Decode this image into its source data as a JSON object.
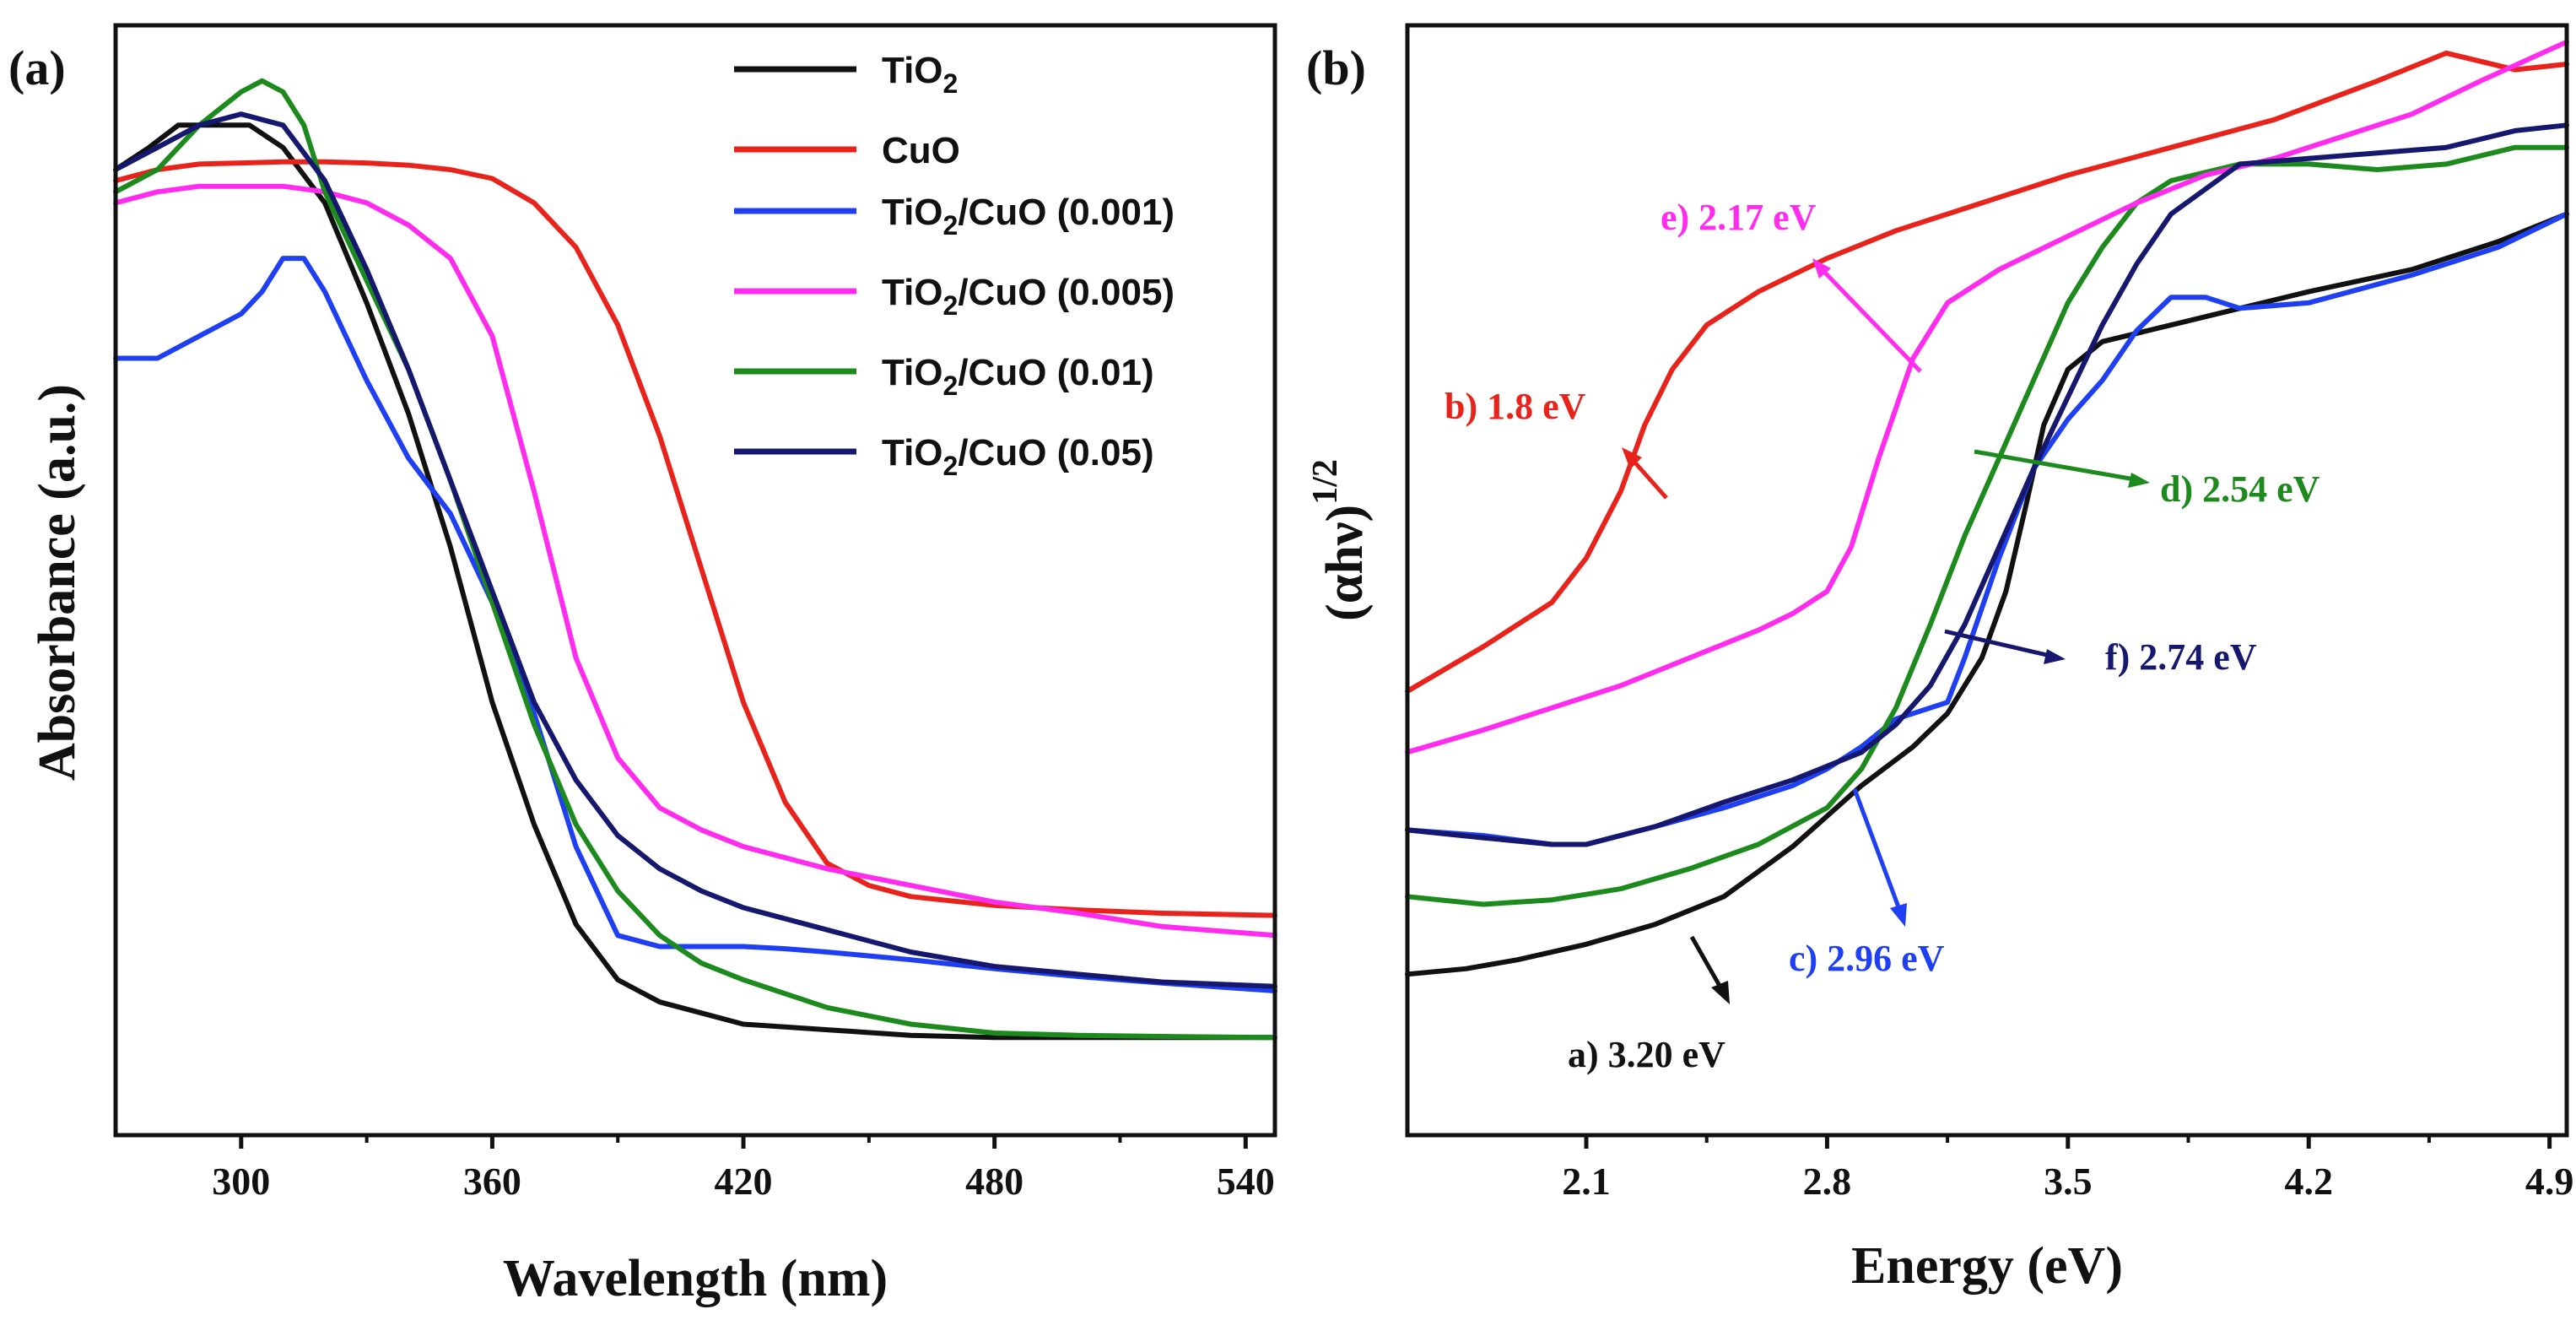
{
  "colors": {
    "black": "#111111",
    "red": "#e8231c",
    "blue": "#1f3ff2",
    "magenta": "#ff2cf0",
    "green": "#1d8a1d",
    "navy": "#15186e"
  },
  "chart_data": [
    {
      "panel": "a",
      "panel_label": "(a)",
      "type": "line",
      "xlabel": "Wavelength (nm)",
      "ylabel": "Absorbance (a.u.)",
      "xlim": [
        270,
        547
      ],
      "ylim": [
        0,
        1
      ],
      "xticks": [
        300,
        360,
        420,
        480,
        540
      ],
      "yticks_shown": false,
      "legend_position": "top-center",
      "legend": [
        {
          "base": "TiO",
          "sub": "2",
          "rest": "",
          "color_key": "black"
        },
        {
          "base": "CuO",
          "sub": "",
          "rest": "",
          "color_key": "red"
        },
        {
          "base": "TiO",
          "sub": "2",
          "rest": "/CuO (0.001)",
          "color_key": "blue"
        },
        {
          "base": "TiO",
          "sub": "2",
          "rest": "/CuO (0.005)",
          "color_key": "magenta"
        },
        {
          "base": "TiO",
          "sub": "2",
          "rest": "/CuO (0.01)",
          "color_key": "green"
        },
        {
          "base": "TiO",
          "sub": "2",
          "rest": "/CuO (0.05)",
          "color_key": "navy"
        }
      ],
      "series": [
        {
          "name": "TiO2",
          "color_key": "black",
          "x": [
            270,
            278,
            285,
            295,
            302,
            310,
            320,
            330,
            340,
            350,
            360,
            370,
            380,
            390,
            400,
            410,
            420,
            440,
            460,
            480,
            500,
            520,
            547
          ],
          "y": [
            0.87,
            0.89,
            0.91,
            0.91,
            0.91,
            0.89,
            0.84,
            0.75,
            0.65,
            0.53,
            0.39,
            0.28,
            0.19,
            0.14,
            0.12,
            0.11,
            0.1,
            0.095,
            0.09,
            0.088,
            0.088,
            0.088,
            0.088
          ]
        },
        {
          "name": "CuO",
          "color_key": "red",
          "x": [
            270,
            280,
            290,
            300,
            310,
            320,
            330,
            340,
            350,
            360,
            370,
            380,
            390,
            400,
            410,
            420,
            430,
            440,
            450,
            460,
            480,
            500,
            520,
            547
          ],
          "y": [
            0.86,
            0.87,
            0.875,
            0.876,
            0.877,
            0.877,
            0.876,
            0.874,
            0.87,
            0.862,
            0.84,
            0.8,
            0.73,
            0.63,
            0.51,
            0.39,
            0.3,
            0.245,
            0.225,
            0.215,
            0.207,
            0.203,
            0.2,
            0.198
          ]
        },
        {
          "name": "TiO2/CuO (0.001)",
          "color_key": "blue",
          "x": [
            270,
            280,
            290,
            300,
            305,
            310,
            315,
            320,
            330,
            340,
            350,
            360,
            370,
            380,
            390,
            400,
            410,
            420,
            430,
            440,
            460,
            480,
            500,
            520,
            547
          ],
          "y": [
            0.7,
            0.7,
            0.72,
            0.74,
            0.76,
            0.79,
            0.79,
            0.76,
            0.68,
            0.61,
            0.56,
            0.48,
            0.38,
            0.26,
            0.18,
            0.17,
            0.17,
            0.17,
            0.168,
            0.165,
            0.158,
            0.15,
            0.143,
            0.137,
            0.13
          ]
        },
        {
          "name": "TiO2/CuO (0.005)",
          "color_key": "magenta",
          "x": [
            270,
            280,
            290,
            300,
            310,
            320,
            330,
            340,
            350,
            360,
            370,
            380,
            390,
            400,
            410,
            420,
            440,
            460,
            480,
            500,
            520,
            547
          ],
          "y": [
            0.84,
            0.85,
            0.855,
            0.855,
            0.855,
            0.85,
            0.84,
            0.82,
            0.79,
            0.72,
            0.58,
            0.43,
            0.34,
            0.295,
            0.275,
            0.26,
            0.24,
            0.225,
            0.21,
            0.2,
            0.188,
            0.18
          ]
        },
        {
          "name": "TiO2/CuO (0.01)",
          "color_key": "green",
          "x": [
            270,
            280,
            290,
            300,
            305,
            310,
            315,
            320,
            330,
            340,
            350,
            360,
            370,
            380,
            390,
            400,
            410,
            420,
            440,
            460,
            480,
            500,
            520,
            547
          ],
          "y": [
            0.85,
            0.87,
            0.91,
            0.94,
            0.95,
            0.94,
            0.91,
            0.85,
            0.77,
            0.69,
            0.59,
            0.48,
            0.37,
            0.28,
            0.22,
            0.18,
            0.155,
            0.14,
            0.115,
            0.1,
            0.092,
            0.09,
            0.089,
            0.088
          ]
        },
        {
          "name": "TiO2/CuO (0.05)",
          "color_key": "navy",
          "x": [
            270,
            280,
            290,
            300,
            310,
            320,
            330,
            340,
            350,
            360,
            370,
            380,
            390,
            400,
            410,
            420,
            440,
            460,
            480,
            500,
            520,
            547
          ],
          "y": [
            0.87,
            0.89,
            0.91,
            0.92,
            0.91,
            0.86,
            0.78,
            0.69,
            0.59,
            0.49,
            0.39,
            0.32,
            0.27,
            0.24,
            0.22,
            0.205,
            0.185,
            0.165,
            0.152,
            0.145,
            0.138,
            0.134
          ]
        }
      ]
    },
    {
      "panel": "b",
      "panel_label": "(b)",
      "type": "line",
      "xlabel": "Energy (eV)",
      "ylabel_base": "(αhν)",
      "ylabel_sup": "1/2",
      "xlim": [
        1.58,
        4.95
      ],
      "ylim": [
        0,
        1
      ],
      "xticks": [
        2.1,
        2.8,
        3.5,
        4.2,
        4.9
      ],
      "yticks_shown": false,
      "series": [
        {
          "name": "a",
          "color_key": "black",
          "x": [
            1.58,
            1.75,
            1.9,
            2.1,
            2.3,
            2.5,
            2.7,
            2.9,
            3.05,
            3.15,
            3.25,
            3.32,
            3.38,
            3.43,
            3.5,
            3.6,
            3.8,
            4.0,
            4.2,
            4.5,
            4.75,
            4.95
          ],
          "y": [
            0.145,
            0.15,
            0.158,
            0.172,
            0.19,
            0.215,
            0.26,
            0.315,
            0.35,
            0.38,
            0.43,
            0.49,
            0.57,
            0.64,
            0.69,
            0.715,
            0.73,
            0.745,
            0.76,
            0.78,
            0.805,
            0.83
          ]
        },
        {
          "name": "b",
          "color_key": "red",
          "x": [
            1.58,
            1.8,
            2.0,
            2.1,
            2.2,
            2.27,
            2.35,
            2.45,
            2.6,
            2.8,
            3.0,
            3.2,
            3.5,
            3.8,
            4.1,
            4.4,
            4.6,
            4.8,
            4.95
          ],
          "y": [
            0.4,
            0.44,
            0.48,
            0.52,
            0.58,
            0.64,
            0.69,
            0.73,
            0.76,
            0.79,
            0.815,
            0.835,
            0.865,
            0.89,
            0.915,
            0.95,
            0.975,
            0.96,
            0.965
          ]
        },
        {
          "name": "c",
          "color_key": "blue",
          "x": [
            1.58,
            1.8,
            2.0,
            2.1,
            2.3,
            2.5,
            2.7,
            2.8,
            2.9,
            3.0,
            3.05,
            3.1,
            3.15,
            3.2,
            3.3,
            3.4,
            3.5,
            3.6,
            3.7,
            3.8,
            3.9,
            4.0,
            4.2,
            4.5,
            4.75,
            4.95
          ],
          "y": [
            0.275,
            0.27,
            0.262,
            0.262,
            0.278,
            0.295,
            0.315,
            0.33,
            0.35,
            0.375,
            0.38,
            0.385,
            0.39,
            0.43,
            0.52,
            0.6,
            0.645,
            0.68,
            0.725,
            0.755,
            0.755,
            0.745,
            0.75,
            0.775,
            0.8,
            0.83
          ]
        },
        {
          "name": "d",
          "color_key": "green",
          "x": [
            1.58,
            1.8,
            2.0,
            2.2,
            2.4,
            2.6,
            2.8,
            2.9,
            3.0,
            3.1,
            3.2,
            3.3,
            3.4,
            3.5,
            3.6,
            3.7,
            3.8,
            4.0,
            4.2,
            4.4,
            4.6,
            4.8,
            4.95
          ],
          "y": [
            0.215,
            0.208,
            0.212,
            0.222,
            0.24,
            0.262,
            0.295,
            0.33,
            0.385,
            0.46,
            0.54,
            0.61,
            0.68,
            0.75,
            0.8,
            0.84,
            0.86,
            0.875,
            0.875,
            0.87,
            0.875,
            0.89,
            0.89
          ]
        },
        {
          "name": "e",
          "color_key": "magenta",
          "x": [
            1.58,
            1.8,
            2.0,
            2.2,
            2.4,
            2.6,
            2.7,
            2.8,
            2.87,
            2.95,
            3.05,
            3.15,
            3.3,
            3.5,
            3.7,
            3.9,
            4.1,
            4.3,
            4.5,
            4.7,
            4.95
          ],
          "y": [
            0.345,
            0.365,
            0.385,
            0.405,
            0.43,
            0.455,
            0.47,
            0.49,
            0.53,
            0.61,
            0.7,
            0.75,
            0.78,
            0.81,
            0.84,
            0.865,
            0.88,
            0.9,
            0.92,
            0.95,
            0.985
          ]
        },
        {
          "name": "f",
          "color_key": "navy",
          "x": [
            1.58,
            1.8,
            2.0,
            2.1,
            2.3,
            2.5,
            2.7,
            2.9,
            3.0,
            3.1,
            3.2,
            3.3,
            3.4,
            3.5,
            3.6,
            3.7,
            3.8,
            4.0,
            4.2,
            4.4,
            4.6,
            4.8,
            4.95
          ],
          "y": [
            0.275,
            0.268,
            0.262,
            0.262,
            0.278,
            0.3,
            0.32,
            0.345,
            0.37,
            0.405,
            0.46,
            0.53,
            0.6,
            0.665,
            0.73,
            0.785,
            0.83,
            0.875,
            0.88,
            0.885,
            0.89,
            0.905,
            0.91
          ]
        }
      ],
      "annotations": [
        {
          "name": "annotation-a",
          "text": "a) 3.20 eV",
          "color_key": "black",
          "edge_eV": 3.2,
          "direction": "down-right"
        },
        {
          "name": "annotation-b",
          "text": "b) 1.8 eV",
          "color_key": "red",
          "edge_eV": 1.8,
          "direction": "up-left"
        },
        {
          "name": "annotation-c",
          "text": "c) 2.96 eV",
          "color_key": "blue",
          "edge_eV": 2.96,
          "direction": "down-right"
        },
        {
          "name": "annotation-d",
          "text": "d) 2.54 eV",
          "color_key": "green",
          "edge_eV": 2.54,
          "direction": "right"
        },
        {
          "name": "annotation-e",
          "text": "e) 2.17 eV",
          "color_key": "magenta",
          "edge_eV": 2.17,
          "direction": "up-left"
        },
        {
          "name": "annotation-f",
          "text": "f)  2.74 eV",
          "color_key": "navy",
          "edge_eV": 2.74,
          "direction": "right"
        }
      ]
    }
  ]
}
